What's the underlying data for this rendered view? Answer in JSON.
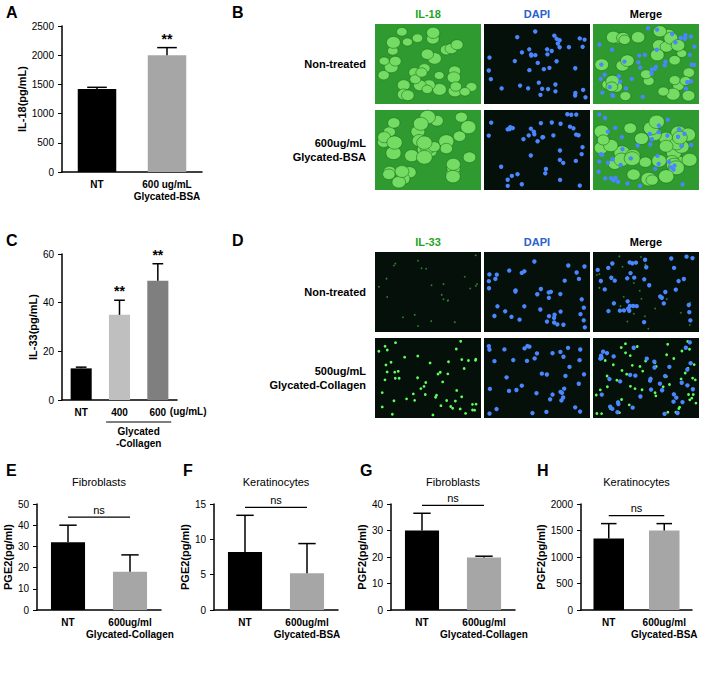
{
  "chart_data": [
    {
      "type": "bar",
      "panel_label": "A",
      "ylabel": "IL-18(pg/mL)",
      "categories": [
        "NT",
        "600 ug/mL Glycated-BSA"
      ],
      "values": [
        1420,
        2000
      ],
      "errors": [
        30,
        130
      ],
      "colors": [
        "#000000",
        "#a6a6a6"
      ],
      "ylim": [
        0,
        2500
      ],
      "yticks": [
        0,
        500,
        1000,
        1500,
        2000,
        2500
      ],
      "significance": [
        null,
        "**"
      ]
    },
    {
      "type": "bar",
      "panel_label": "C",
      "ylabel": "IL-33(pg/mL)",
      "categories": [
        "NT",
        "400",
        "600"
      ],
      "values": [
        13,
        35,
        49
      ],
      "errors": [
        0.5,
        6,
        7
      ],
      "colors": [
        "#000000",
        "#bfbfbf",
        "#7f7f7f"
      ],
      "ylim": [
        0,
        60
      ],
      "yticks": [
        0,
        20,
        40,
        60
      ],
      "significance": [
        null,
        "**",
        "**"
      ],
      "xlabel": "Glycated-Collagen",
      "x_unit": "(ug/mL)"
    },
    {
      "type": "bar",
      "panel_label": "E",
      "title": "Fibroblasts",
      "ylabel": "PGE2(pg/ml)",
      "categories": [
        "NT",
        "600ug/ml Glycated-Collagen"
      ],
      "values": [
        32,
        18
      ],
      "errors": [
        8,
        8
      ],
      "colors": [
        "#000000",
        "#a6a6a6"
      ],
      "ylim": [
        0,
        50
      ],
      "yticks": [
        0,
        10,
        20,
        30,
        40,
        50
      ],
      "comparison_label": "ns"
    },
    {
      "type": "bar",
      "panel_label": "F",
      "title": "Keratinocytes",
      "ylabel": "PGE2(pg/ml)",
      "categories": [
        "NT",
        "600ug/ml Glycated-BSA"
      ],
      "values": [
        8.2,
        5.2
      ],
      "errors": [
        5.2,
        4.2
      ],
      "colors": [
        "#000000",
        "#a6a6a6"
      ],
      "ylim": [
        0,
        15
      ],
      "yticks": [
        0,
        5,
        10,
        15
      ],
      "comparison_label": "ns"
    },
    {
      "type": "bar",
      "panel_label": "G",
      "title": "Fibroblasts",
      "ylabel": "PGF2(pg/ml)",
      "categories": [
        "NT",
        "600ug/ml Glycated-Collagen"
      ],
      "values": [
        30,
        19.8
      ],
      "errors": [
        6.5,
        0.5
      ],
      "colors": [
        "#000000",
        "#a6a6a6"
      ],
      "ylim": [
        0,
        40
      ],
      "yticks": [
        0,
        10,
        20,
        30,
        40
      ],
      "comparison_label": "ns"
    },
    {
      "type": "bar",
      "panel_label": "H",
      "title": "Keratinocytes",
      "ylabel": "PGF2(pg/ml)",
      "categories": [
        "NT",
        "600ug/ml Glycated-BSA"
      ],
      "values": [
        1350,
        1500
      ],
      "errors": [
        280,
        130
      ],
      "colors": [
        "#000000",
        "#a6a6a6"
      ],
      "ylim": [
        0,
        2000
      ],
      "yticks": [
        0,
        500,
        1000,
        1500,
        2000
      ],
      "comparison_label": "ns"
    }
  ],
  "image_panels": [
    {
      "panel_label": "B",
      "columns": [
        "IL-18",
        "DAPI",
        "Merge"
      ],
      "rows": [
        "Non-treated",
        "600ug/mL Glycated-BSA"
      ]
    },
    {
      "panel_label": "D",
      "columns": [
        "IL-33",
        "DAPI",
        "Merge"
      ],
      "rows": [
        "Non-treated",
        "500ug/mL Glycated-Collagen"
      ]
    }
  ]
}
